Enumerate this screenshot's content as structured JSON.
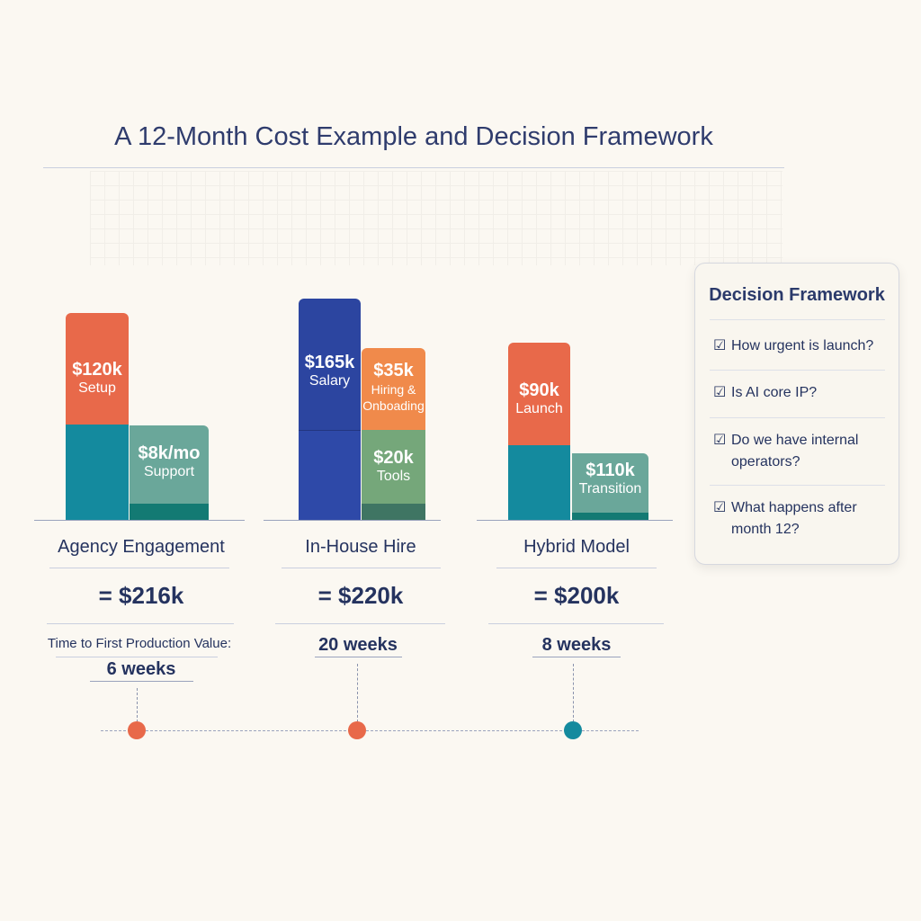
{
  "title": "A 12-Month Cost Example and Decision Framework",
  "colors": {
    "orange": "#e8694a",
    "teal": "#148a9e",
    "green_teal": "#6aa79a",
    "dark_teal": "#137a73",
    "blue": "#2c45a0",
    "light_orange": "#f08a4b",
    "green": "#75a77a",
    "dark_green": "#3f7563",
    "navy_text": "#25335f"
  },
  "options": [
    {
      "name": "Agency Engagement",
      "total": "= $216k",
      "time_label": "Time to First Production Value:",
      "time": "6 weeks",
      "segments": [
        {
          "value": "$120k",
          "label": "Setup"
        },
        {
          "value": "$8k/mo",
          "label": "Support"
        }
      ]
    },
    {
      "name": "In-House Hire",
      "total": "= $220k",
      "time": "20 weeks",
      "segments": [
        {
          "value": "$165k",
          "label": "Salary"
        },
        {
          "value": "$35k",
          "label": "Hiring & Onboading"
        },
        {
          "value": "$20k",
          "label": "Tools"
        }
      ]
    },
    {
      "name": "Hybrid Model",
      "total": "= $200k",
      "time": "8 weeks",
      "segments": [
        {
          "value": "$90k",
          "label": "Launch"
        },
        {
          "value": "$110k",
          "label": "Transition"
        }
      ]
    }
  ],
  "framework": {
    "title": "Decision Framework",
    "check_icon": "checkbox-checked-icon",
    "items": [
      "How urgent is launch?",
      "Is AI core IP?",
      "Do we have internal operators?",
      "What happens after month 12?"
    ]
  }
}
